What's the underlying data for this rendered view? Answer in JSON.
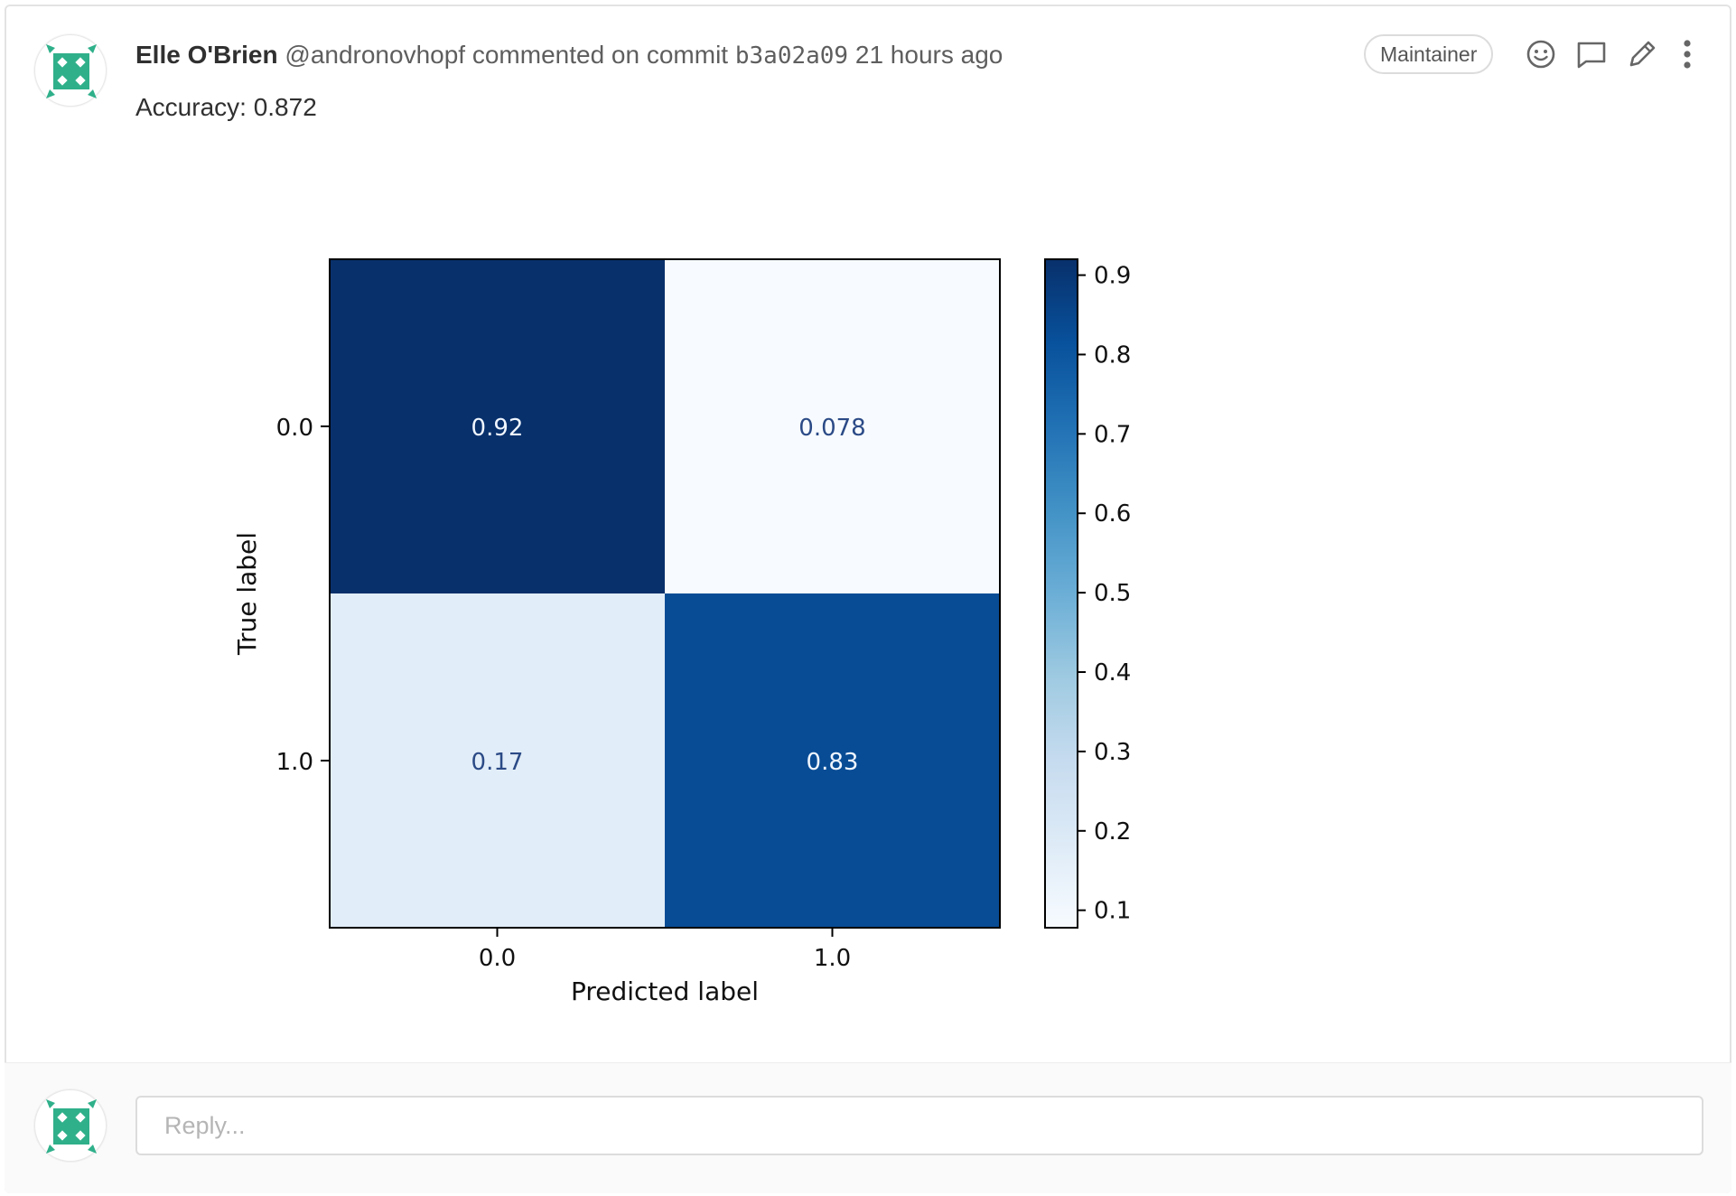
{
  "comment": {
    "author_name": "Elle O'Brien",
    "author_handle": "@andronovhopf",
    "action_text": "commented on commit",
    "commit_sha": "b3a02a09",
    "time_ago": "21 hours ago",
    "role_badge": "Maintainer",
    "body_text": "Accuracy: 0.872"
  },
  "icons": {
    "avatar": "identicon-avatar",
    "reaction": "smiley-icon",
    "reply": "comment-bubble-icon",
    "edit": "pencil-icon",
    "more": "kebab-menu-icon"
  },
  "colors": {
    "avatar_green": "#2fb08a",
    "avatar_light": "#ffffff"
  },
  "chart_data": {
    "type": "heatmap",
    "title": "",
    "xlabel": "Predicted label",
    "ylabel": "True label",
    "x_categories": [
      "0.0",
      "1.0"
    ],
    "y_categories": [
      "0.0",
      "1.0"
    ],
    "matrix": [
      [
        0.92,
        0.078
      ],
      [
        0.17,
        0.83
      ]
    ],
    "cell_labels": [
      [
        "0.92",
        "0.078"
      ],
      [
        "0.17",
        "0.83"
      ]
    ],
    "colormap": "Blues",
    "colorbar": {
      "min": 0.078,
      "max": 0.92,
      "ticks": [
        0.1,
        0.2,
        0.3,
        0.4,
        0.5,
        0.6,
        0.7,
        0.8,
        0.9
      ],
      "tick_labels": [
        "0.1",
        "0.2",
        "0.3",
        "0.4",
        "0.5",
        "0.6",
        "0.7",
        "0.8",
        "0.9"
      ]
    },
    "grid": false
  },
  "reply": {
    "placeholder": "Reply..."
  }
}
